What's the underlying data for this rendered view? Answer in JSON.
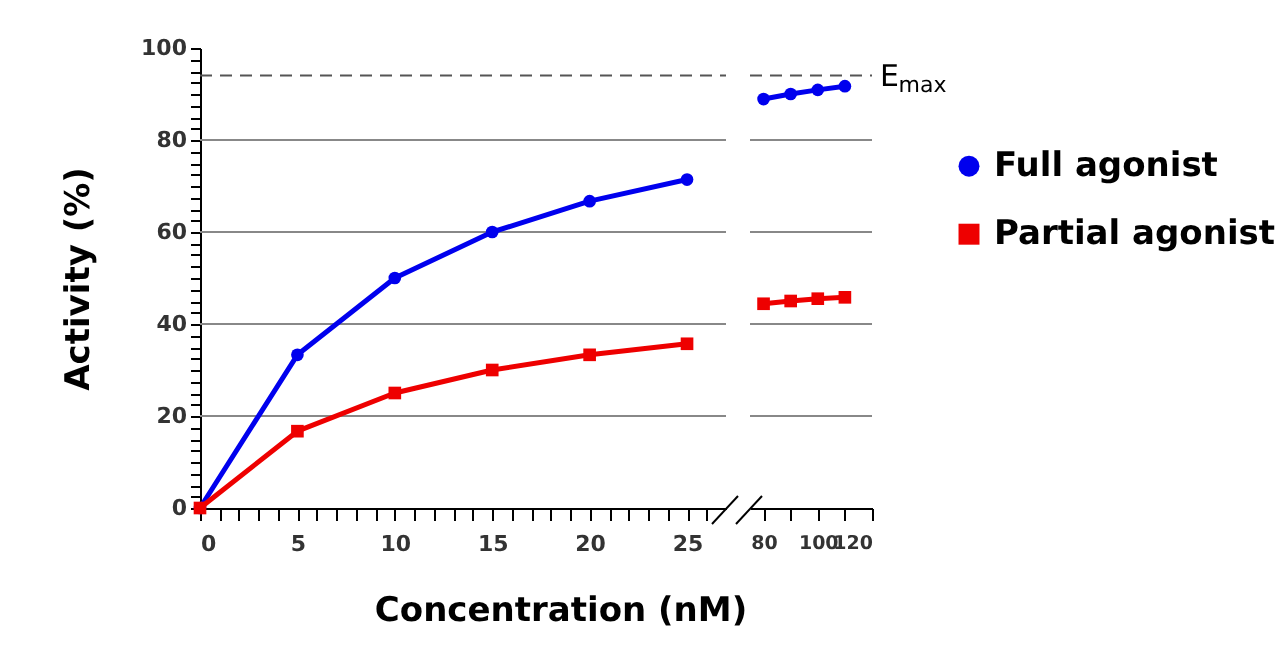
{
  "chart_data": [
    {
      "type": "line",
      "ylabel": "Activity (%)",
      "xlabel": "Concentration (nM)",
      "xlim": [
        0,
        27
      ],
      "ylim": [
        0,
        100
      ],
      "xticks": [
        0,
        {
          "value": 1,
          "label": null
        },
        {
          "value": 2,
          "label": null
        },
        {
          "value": 3,
          "label": null
        },
        {
          "value": 4,
          "label": null
        },
        5,
        {
          "value": 6,
          "label": null
        },
        {
          "value": 7,
          "label": null
        },
        {
          "value": 8,
          "label": null
        },
        {
          "value": 9,
          "label": null
        },
        10,
        {
          "value": 11,
          "label": null
        },
        {
          "value": 12,
          "label": null
        },
        {
          "value": 13,
          "label": null
        },
        {
          "value": 14,
          "label": null
        },
        15,
        {
          "value": 16,
          "label": null
        },
        {
          "value": 17,
          "label": null
        },
        {
          "value": 18,
          "label": null
        },
        {
          "value": 19,
          "label": null
        },
        20,
        {
          "value": 21,
          "label": null
        },
        {
          "value": 22,
          "label": null
        },
        {
          "value": 23,
          "label": null
        },
        {
          "value": 24,
          "label": null
        },
        25,
        {
          "value": 26,
          "label": null
        }
      ],
      "yticks": [
        0,
        {
          "value": 2.5,
          "label": null
        },
        {
          "value": 5,
          "label": null
        },
        {
          "value": 7.5,
          "label": null
        },
        {
          "value": 10,
          "label": null
        },
        {
          "value": 12.5,
          "label": null
        },
        {
          "value": 15,
          "label": null
        },
        {
          "value": 17.5,
          "label": null
        },
        20,
        {
          "value": 22.5,
          "label": null
        },
        {
          "value": 25,
          "label": null
        },
        {
          "value": 27.5,
          "label": null
        },
        {
          "value": 30,
          "label": null
        },
        {
          "value": 32.5,
          "label": null
        },
        {
          "value": 35,
          "label": null
        },
        {
          "value": 37.5,
          "label": null
        },
        40,
        {
          "value": 42.5,
          "label": null
        },
        {
          "value": 45,
          "label": null
        },
        {
          "value": 47.5,
          "label": null
        },
        {
          "value": 50,
          "label": null
        },
        {
          "value": 52.5,
          "label": null
        },
        {
          "value": 55,
          "label": null
        },
        {
          "value": 57.5,
          "label": null
        },
        60,
        {
          "value": 62.5,
          "label": null
        },
        {
          "value": 65,
          "label": null
        },
        {
          "value": 67.5,
          "label": null
        },
        {
          "value": 70,
          "label": null
        },
        {
          "value": 72.5,
          "label": null
        },
        {
          "value": 75,
          "label": null
        },
        {
          "value": 77.5,
          "label": null
        },
        80,
        {
          "value": 82.5,
          "label": null
        },
        {
          "value": 85,
          "label": null
        },
        {
          "value": 87.5,
          "label": null
        },
        {
          "value": 90,
          "label": null
        },
        {
          "value": 92.5,
          "label": null
        },
        {
          "value": 95,
          "label": null
        },
        {
          "value": 97.5,
          "label": null
        },
        100
      ],
      "grid": "y",
      "ref_lines": [
        {
          "axis": "y",
          "value": 94,
          "line_style": "dashed",
          "color": "#555555"
        }
      ],
      "series": [
        {
          "color": "#0000ee",
          "marker": "circle",
          "x": [
            0,
            5,
            10,
            15,
            20,
            25
          ],
          "values": [
            0,
            33.3,
            50,
            60,
            66.7,
            71.4
          ]
        },
        {
          "color": "#ee0000",
          "marker": "square",
          "x": [
            0,
            5,
            10,
            15,
            20,
            25
          ],
          "values": [
            0,
            16.7,
            25,
            30,
            33.3,
            35.7
          ]
        }
      ]
    },
    {
      "type": "line",
      "xlim": [
        75,
        120
      ],
      "ylim": [
        0,
        100
      ],
      "tick_labels": "x",
      "xticks": [
        80,
        {
          "value": 90,
          "label": null
        },
        100,
        {
          "value": 110,
          "label": null
        },
        120
      ],
      "yticks": [
        20,
        40,
        60,
        80
      ],
      "grid": "y",
      "legend": "right",
      "ref_lines": [
        {
          "axis": "y",
          "value": 94,
          "line_style": "dashed",
          "color": "#555555",
          "label": "E$_{max}$"
        }
      ],
      "series": [
        {
          "name": "Full agonist",
          "color": "#0000ee",
          "marker": "circle",
          "x": [
            80,
            90,
            100,
            110
          ],
          "values": [
            88.9,
            90,
            90.9,
            91.7
          ]
        },
        {
          "name": "Partial agonist",
          "color": "#ee0000",
          "marker": "square",
          "x": [
            80,
            90,
            100,
            110
          ],
          "values": [
            44.4,
            45,
            45.5,
            45.8
          ]
        }
      ]
    }
  ]
}
